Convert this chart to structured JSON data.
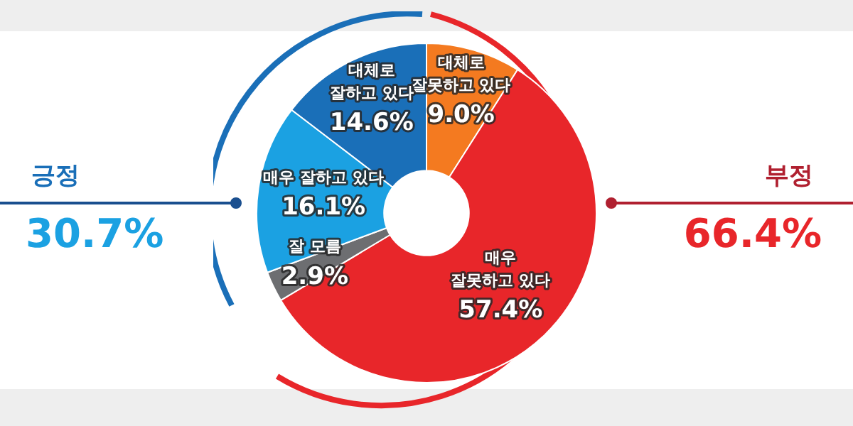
{
  "chart_data": {
    "type": "donut",
    "categories": [
      "대체로\n잘못하고 있다",
      "매우\n잘못하고 있다",
      "잘 모름",
      "매우 잘하고 있다",
      "대체로\n잘하고 있다"
    ],
    "values": [
      9.0,
      57.4,
      2.9,
      16.1,
      14.6
    ],
    "colors": [
      "#f47a20",
      "#e8262a",
      "#6d6e71",
      "#1ba1e2",
      "#1a6fb8"
    ],
    "value_labels": [
      "9.0%",
      "57.4%",
      "2.9%",
      "16.1%",
      "14.6%"
    ],
    "annotations": [
      "긍정",
      "30.7%",
      "부정",
      "66.4%"
    ],
    "legend": false
  }
}
